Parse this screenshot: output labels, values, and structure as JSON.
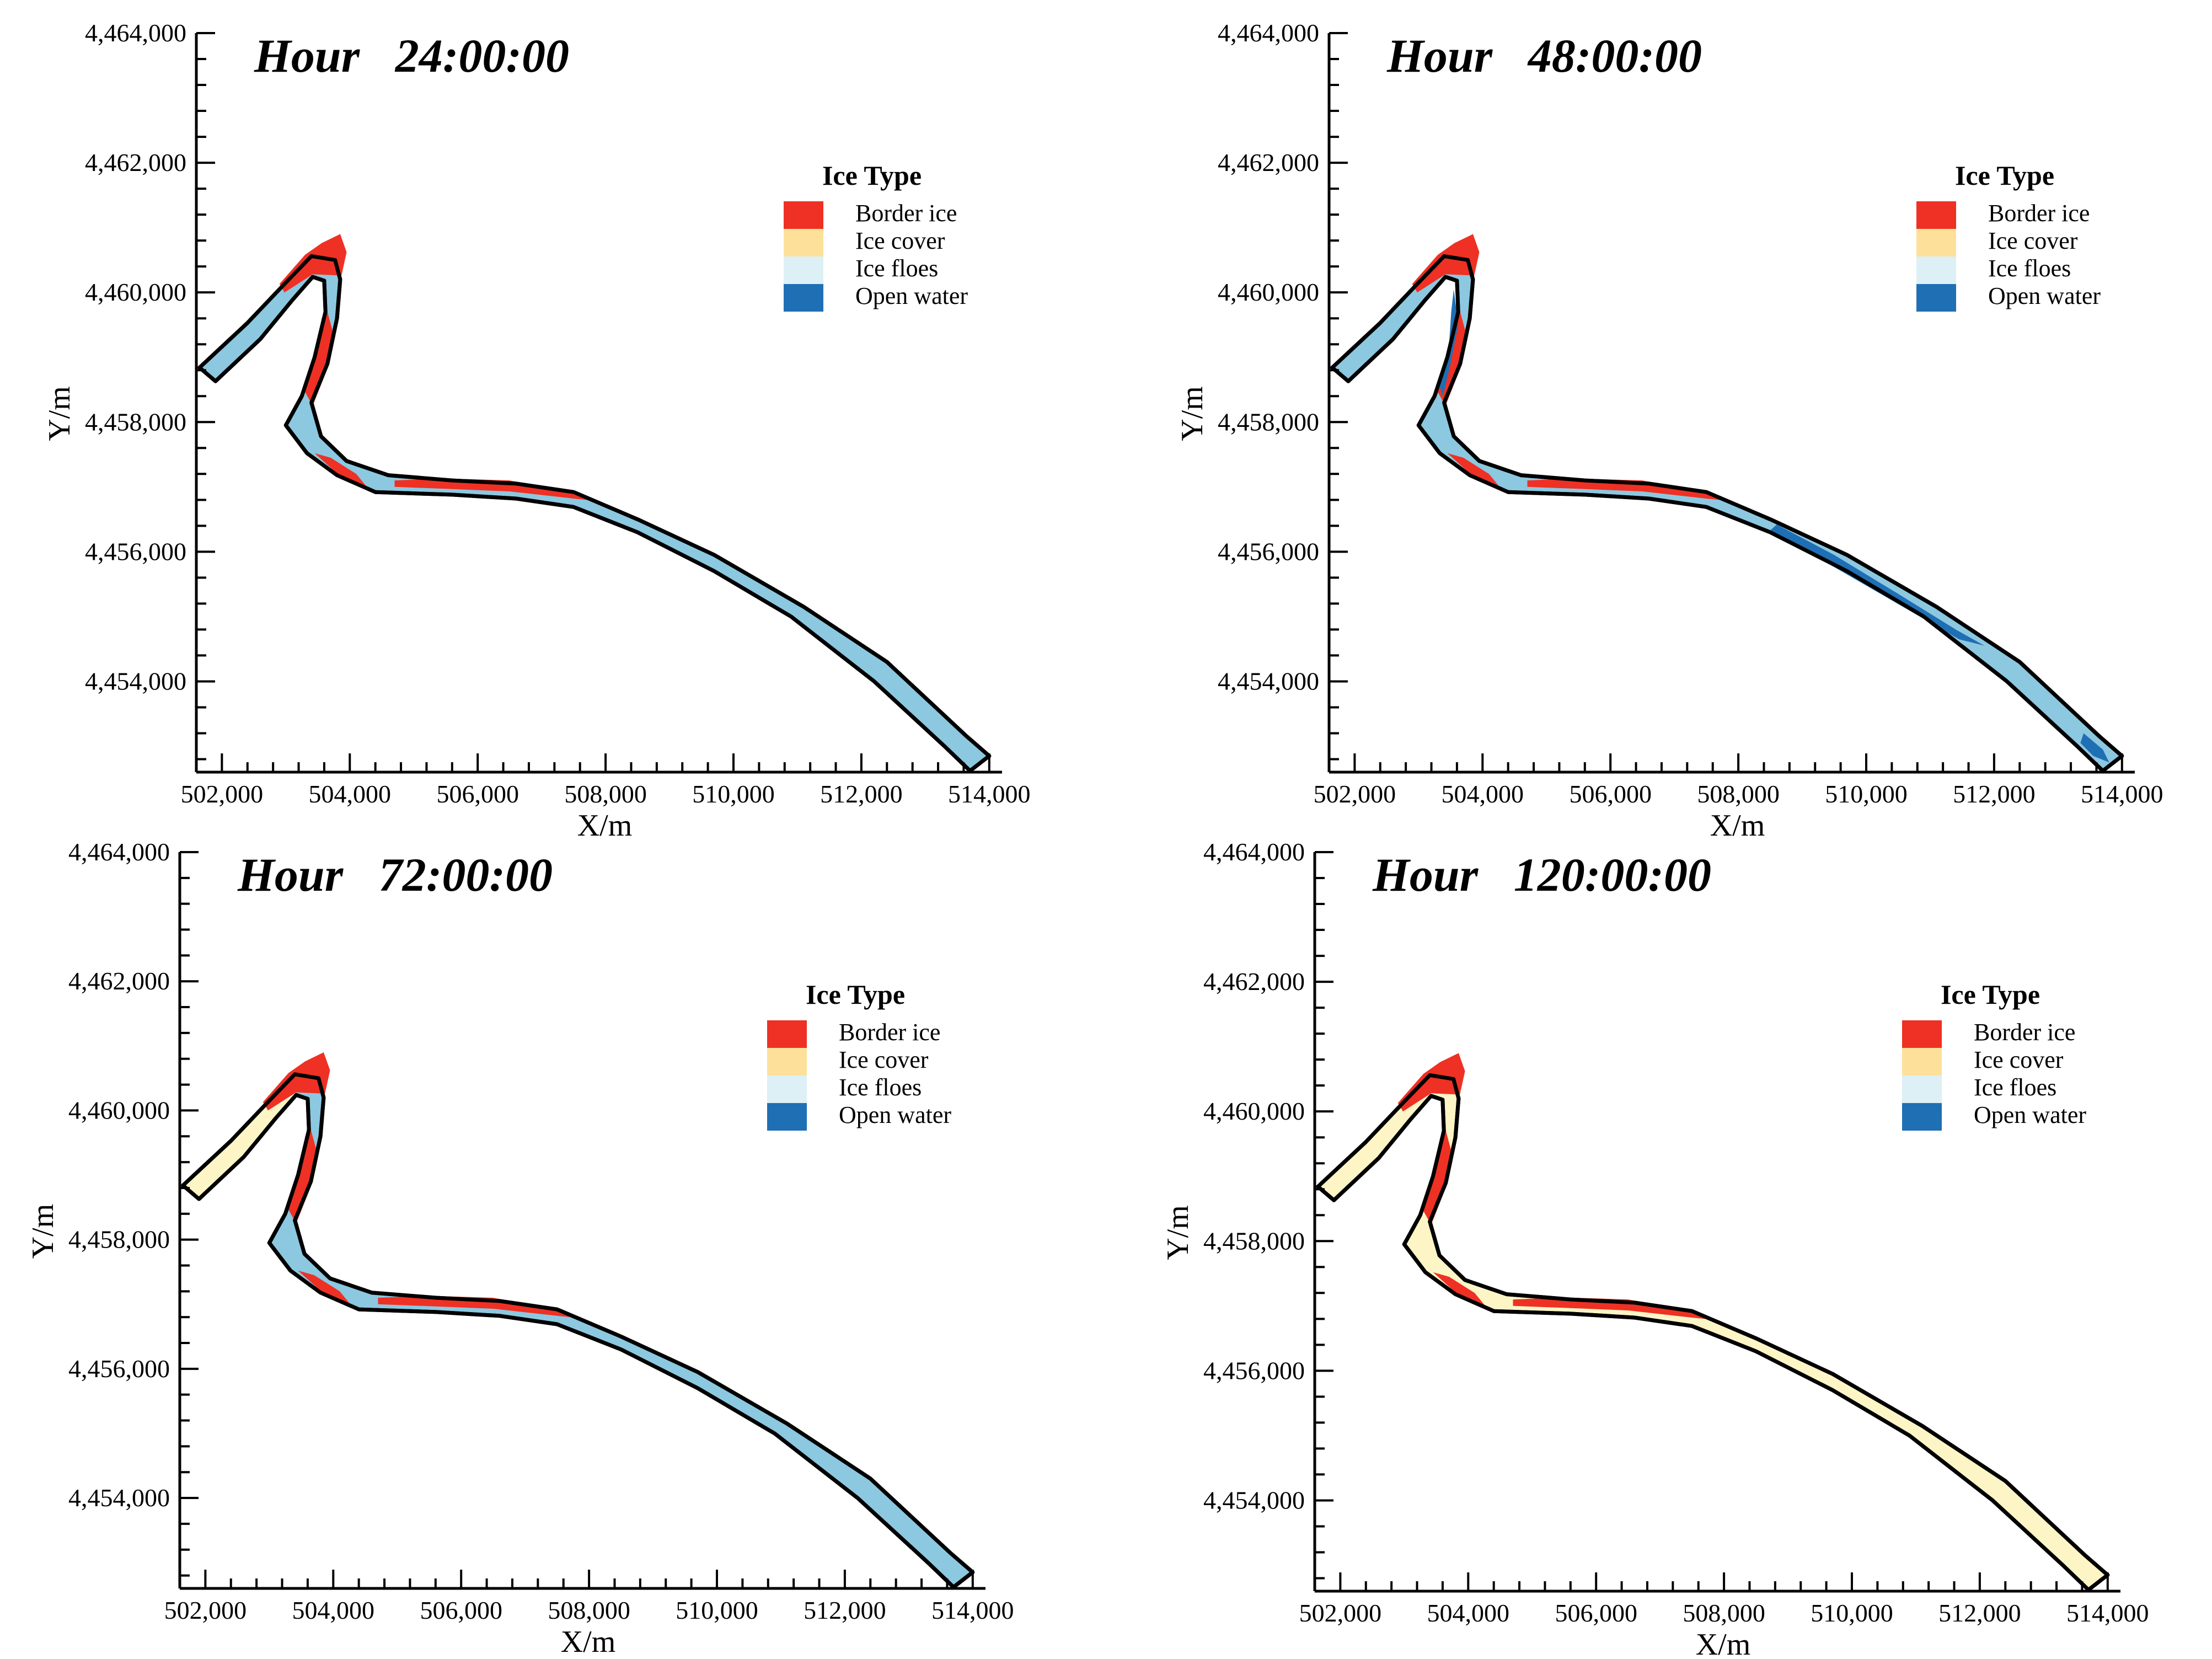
{
  "chart_data": [
    {
      "type": "map",
      "title": "Hour   24:00:00",
      "xlabel": "X/m",
      "ylabel": "Y/m",
      "xlim": [
        501600,
        514200
      ],
      "ylim": [
        4452600,
        4464000
      ],
      "x_ticks": [
        "502,000",
        "504,000",
        "506,000",
        "508,000",
        "510,000",
        "512,000",
        "514,000"
      ],
      "y_ticks": [
        "4,454,000",
        "4,456,000",
        "4,458,000",
        "4,460,000",
        "4,462,000",
        "4,464,000"
      ],
      "legend_title": "Ice Type",
      "legend": [
        "Border ice",
        "Ice cover",
        "Ice floes",
        "Open water"
      ],
      "fill": "floes",
      "open_water_patches": []
    },
    {
      "type": "map",
      "title": "Hour   48:00:00",
      "xlabel": "X/m",
      "ylabel": "Y/m",
      "xlim": [
        501600,
        514200
      ],
      "ylim": [
        4452600,
        4464000
      ],
      "x_ticks": [
        "502,000",
        "504,000",
        "506,000",
        "508,000",
        "510,000",
        "512,000",
        "514,000"
      ],
      "y_ticks": [
        "4,454,000",
        "4,456,000",
        "4,458,000",
        "4,460,000",
        "4,462,000",
        "4,464,000"
      ],
      "legend_title": "Ice Type",
      "legend": [
        "Border ice",
        "Ice cover",
        "Ice floes",
        "Open water"
      ],
      "fill": "floes",
      "open_water_patches": [
        "mid-reach",
        "upper-bend",
        "outlet"
      ]
    },
    {
      "type": "map",
      "title": "Hour   72:00:00",
      "xlabel": "X/m",
      "ylabel": "Y/m",
      "xlim": [
        501600,
        514200
      ],
      "ylim": [
        4452600,
        4464000
      ],
      "x_ticks": [
        "502,000",
        "504,000",
        "506,000",
        "508,000",
        "510,000",
        "512,000",
        "514,000"
      ],
      "y_ticks": [
        "4,454,000",
        "4,456,000",
        "4,458,000",
        "4,460,000",
        "4,462,000",
        "4,464,000"
      ],
      "legend_title": "Ice Type",
      "legend": [
        "Border ice",
        "Ice cover",
        "Ice floes",
        "Open water"
      ],
      "fill": "floes-with-upstream-cover",
      "open_water_patches": []
    },
    {
      "type": "map",
      "title": "Hour   120:00:00",
      "xlabel": "X/m",
      "ylabel": "Y/m",
      "xlim": [
        501600,
        514200
      ],
      "ylim": [
        4452600,
        4464000
      ],
      "x_ticks": [
        "502,000",
        "504,000",
        "506,000",
        "508,000",
        "510,000",
        "512,000",
        "514,000"
      ],
      "y_ticks": [
        "4,454,000",
        "4,456,000",
        "4,458,000",
        "4,460,000",
        "4,462,000",
        "4,464,000"
      ],
      "legend_title": "Ice Type",
      "legend": [
        "Border ice",
        "Ice cover",
        "Ice floes",
        "Open water"
      ],
      "fill": "cover",
      "open_water_patches": []
    }
  ],
  "colors": {
    "border_ice": "#ee3124",
    "ice_cover": "#fde19a",
    "ice_floes": "#dcf0f6",
    "open_water": "#1f6fb4",
    "channel_floes": "#8cc8e0",
    "channel_cover": "#fdf5c6"
  }
}
